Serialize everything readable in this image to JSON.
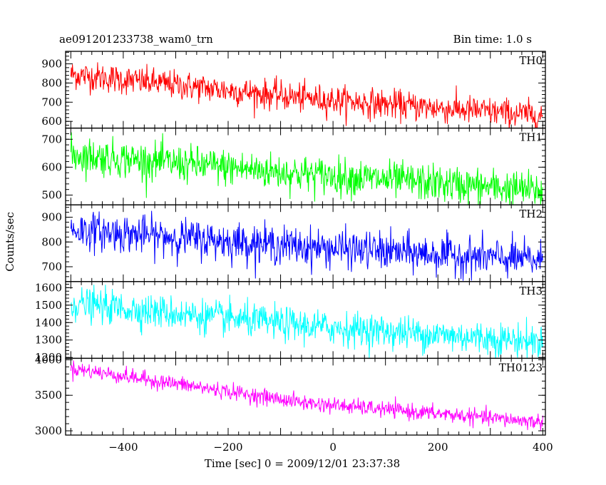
{
  "chart_data": {
    "type": "line",
    "title_left": "ae091201233738_wam0_trn",
    "title_right": "Bin time: 1.0 s",
    "ylabel": "Counts/sec",
    "xlabel": "Time [sec] 0 = 2009/12/01 23:37:38",
    "xlim": [
      -510,
      405
    ],
    "x_ticks": [
      -400,
      -200,
      0,
      200,
      400
    ],
    "x_tick_labels": [
      "−400",
      "−200",
      "0",
      "200",
      "400"
    ],
    "x_data_range": [
      -500,
      400
    ],
    "bin_time": 1.0,
    "panels": [
      {
        "name": "TH0",
        "color": "#ff0000",
        "ylim": [
          565,
          965
        ],
        "y_ticks": [
          600,
          700,
          800,
          900
        ],
        "trend": {
          "start": 845,
          "mid": 720,
          "end": 630
        },
        "noise": 38
      },
      {
        "name": "TH1",
        "color": "#00ff00",
        "ylim": [
          465,
          740
        ],
        "y_ticks": [
          500,
          600,
          700
        ],
        "trend": {
          "start": 645,
          "mid": 575,
          "end": 515
        },
        "noise": 33
      },
      {
        "name": "TH2",
        "color": "#0000ff",
        "ylim": [
          640,
          950
        ],
        "y_ticks": [
          700,
          800,
          900
        ],
        "trend": {
          "start": 850,
          "mid": 780,
          "end": 725
        },
        "noise": 38
      },
      {
        "name": "TH3",
        "color": "#00ffff",
        "ylim": [
          1195,
          1635
        ],
        "y_ticks": [
          1200,
          1300,
          1400,
          1500,
          1600
        ],
        "trend": {
          "start": 1510,
          "mid": 1380,
          "end": 1290
        },
        "noise": 48
      },
      {
        "name": "TH0123",
        "color": "#ff00ff",
        "ylim": [
          2940,
          4020
        ],
        "y_ticks": [
          3000,
          3500,
          4000
        ],
        "trend": {
          "start": 3880,
          "mid": 3390,
          "end": 3120
        },
        "noise": 55
      }
    ]
  }
}
